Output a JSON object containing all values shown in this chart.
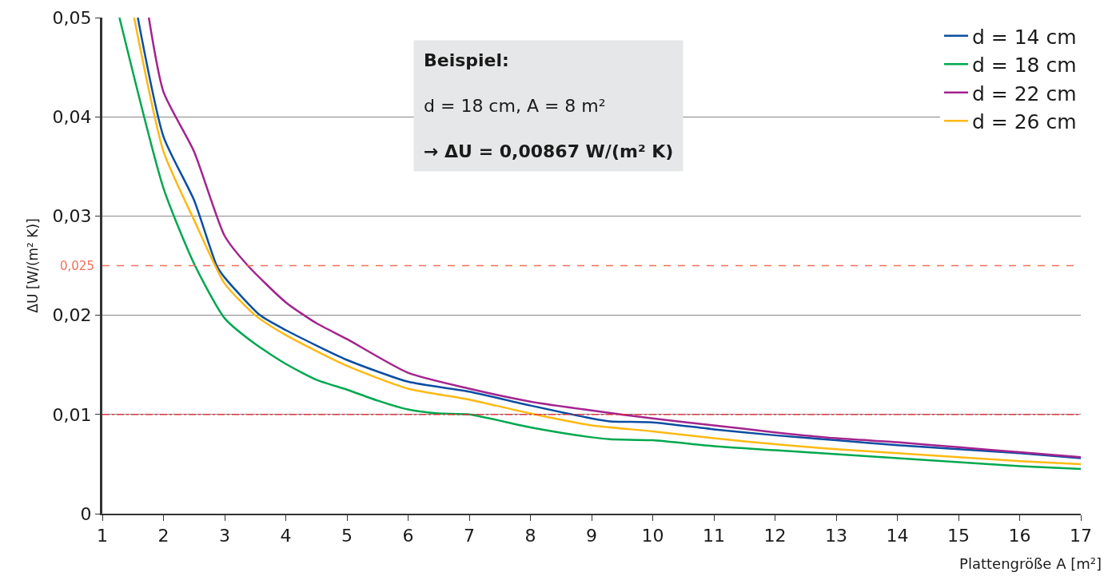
{
  "chart_data": {
    "type": "line",
    "xlabel": "Plattengröße A [m²]",
    "ylabel": "ΔU [W/(m² K)]",
    "xlim": [
      1,
      17
    ],
    "xticks": [
      1,
      2,
      3,
      4,
      5,
      6,
      7,
      8,
      9,
      10,
      11,
      12,
      13,
      14,
      15,
      16,
      17
    ],
    "ylim": [
      0,
      0.05
    ],
    "yticks": [
      {
        "value": 0,
        "label": "0"
      },
      {
        "value": 0.01,
        "label": "0,01"
      },
      {
        "value": 0.02,
        "label": "0,02"
      },
      {
        "value": 0.03,
        "label": "0,03"
      },
      {
        "value": 0.04,
        "label": "0,04"
      },
      {
        "value": 0.05,
        "label": "0,05"
      }
    ],
    "grid": "y",
    "legend": "top right",
    "line_style": "solid",
    "marker": "none",
    "series": [
      {
        "name": "d = 14 cm",
        "color": "#0a4ea2",
        "x": [
          1.58,
          2,
          2.5,
          2.87,
          3,
          3.58,
          4,
          5,
          6,
          7,
          8,
          9,
          9.3,
          10,
          11,
          12,
          13,
          14,
          15,
          16,
          17
        ],
        "values": [
          0.05,
          0.038,
          0.0316,
          0.025,
          0.0238,
          0.02,
          0.0185,
          0.0155,
          0.0133,
          0.0123,
          0.0109,
          0.0096,
          0.0093,
          0.0092,
          0.0085,
          0.0079,
          0.0074,
          0.0069,
          0.0065,
          0.0061,
          0.0056
        ]
      },
      {
        "name": "d = 18 cm",
        "color": "#00a84f",
        "x": [
          1.28,
          2,
          2.5,
          3,
          3.5,
          4,
          4.5,
          5,
          5.5,
          6,
          6.5,
          7,
          8,
          9,
          9.3,
          10,
          11,
          12,
          13,
          14,
          15,
          16,
          17
        ],
        "values": [
          0.05,
          0.0328,
          0.0252,
          0.0197,
          0.0171,
          0.0151,
          0.0135,
          0.0125,
          0.0114,
          0.0105,
          0.0101,
          0.01,
          0.0087,
          0.0077,
          0.0075,
          0.0074,
          0.0068,
          0.0064,
          0.006,
          0.0056,
          0.0052,
          0.0048,
          0.0045
        ]
      },
      {
        "name": "d = 22 cm",
        "color": "#a3238e",
        "x": [
          1.76,
          2,
          2.5,
          3,
          3.38,
          4,
          4.5,
          5,
          6,
          7,
          8,
          9,
          10,
          11,
          12,
          13,
          14,
          15,
          16,
          17
        ],
        "values": [
          0.05,
          0.0425,
          0.0365,
          0.028,
          0.025,
          0.0213,
          0.0192,
          0.0176,
          0.0142,
          0.0126,
          0.0113,
          0.0104,
          0.0096,
          0.0089,
          0.0082,
          0.0076,
          0.0072,
          0.0067,
          0.0062,
          0.0057
        ]
      },
      {
        "name": "d = 26 cm",
        "color": "#fdb913",
        "x": [
          1.52,
          2,
          2.5,
          3,
          3.5,
          4,
          5,
          6,
          7,
          8,
          9,
          10,
          11,
          12,
          13,
          14,
          15,
          16,
          17
        ],
        "values": [
          0.05,
          0.0365,
          0.0296,
          0.0232,
          0.02,
          0.018,
          0.0149,
          0.0126,
          0.0115,
          0.0101,
          0.0089,
          0.0083,
          0.0076,
          0.007,
          0.0065,
          0.0061,
          0.0057,
          0.0053,
          0.005
        ]
      }
    ],
    "ref_lines": [
      {
        "axis": "y",
        "value": 0.025,
        "label": "0,025",
        "color": "#f07058",
        "line_style": "dashed"
      },
      {
        "axis": "y",
        "value": 0.01,
        "label": null,
        "color": "#e8202a",
        "line_style": "dashdot"
      }
    ],
    "annotations": [
      "Beispiel:",
      "d = 18 cm, A = 8 m²",
      "→ ΔU = 0,00867 W/(m² K)"
    ]
  }
}
